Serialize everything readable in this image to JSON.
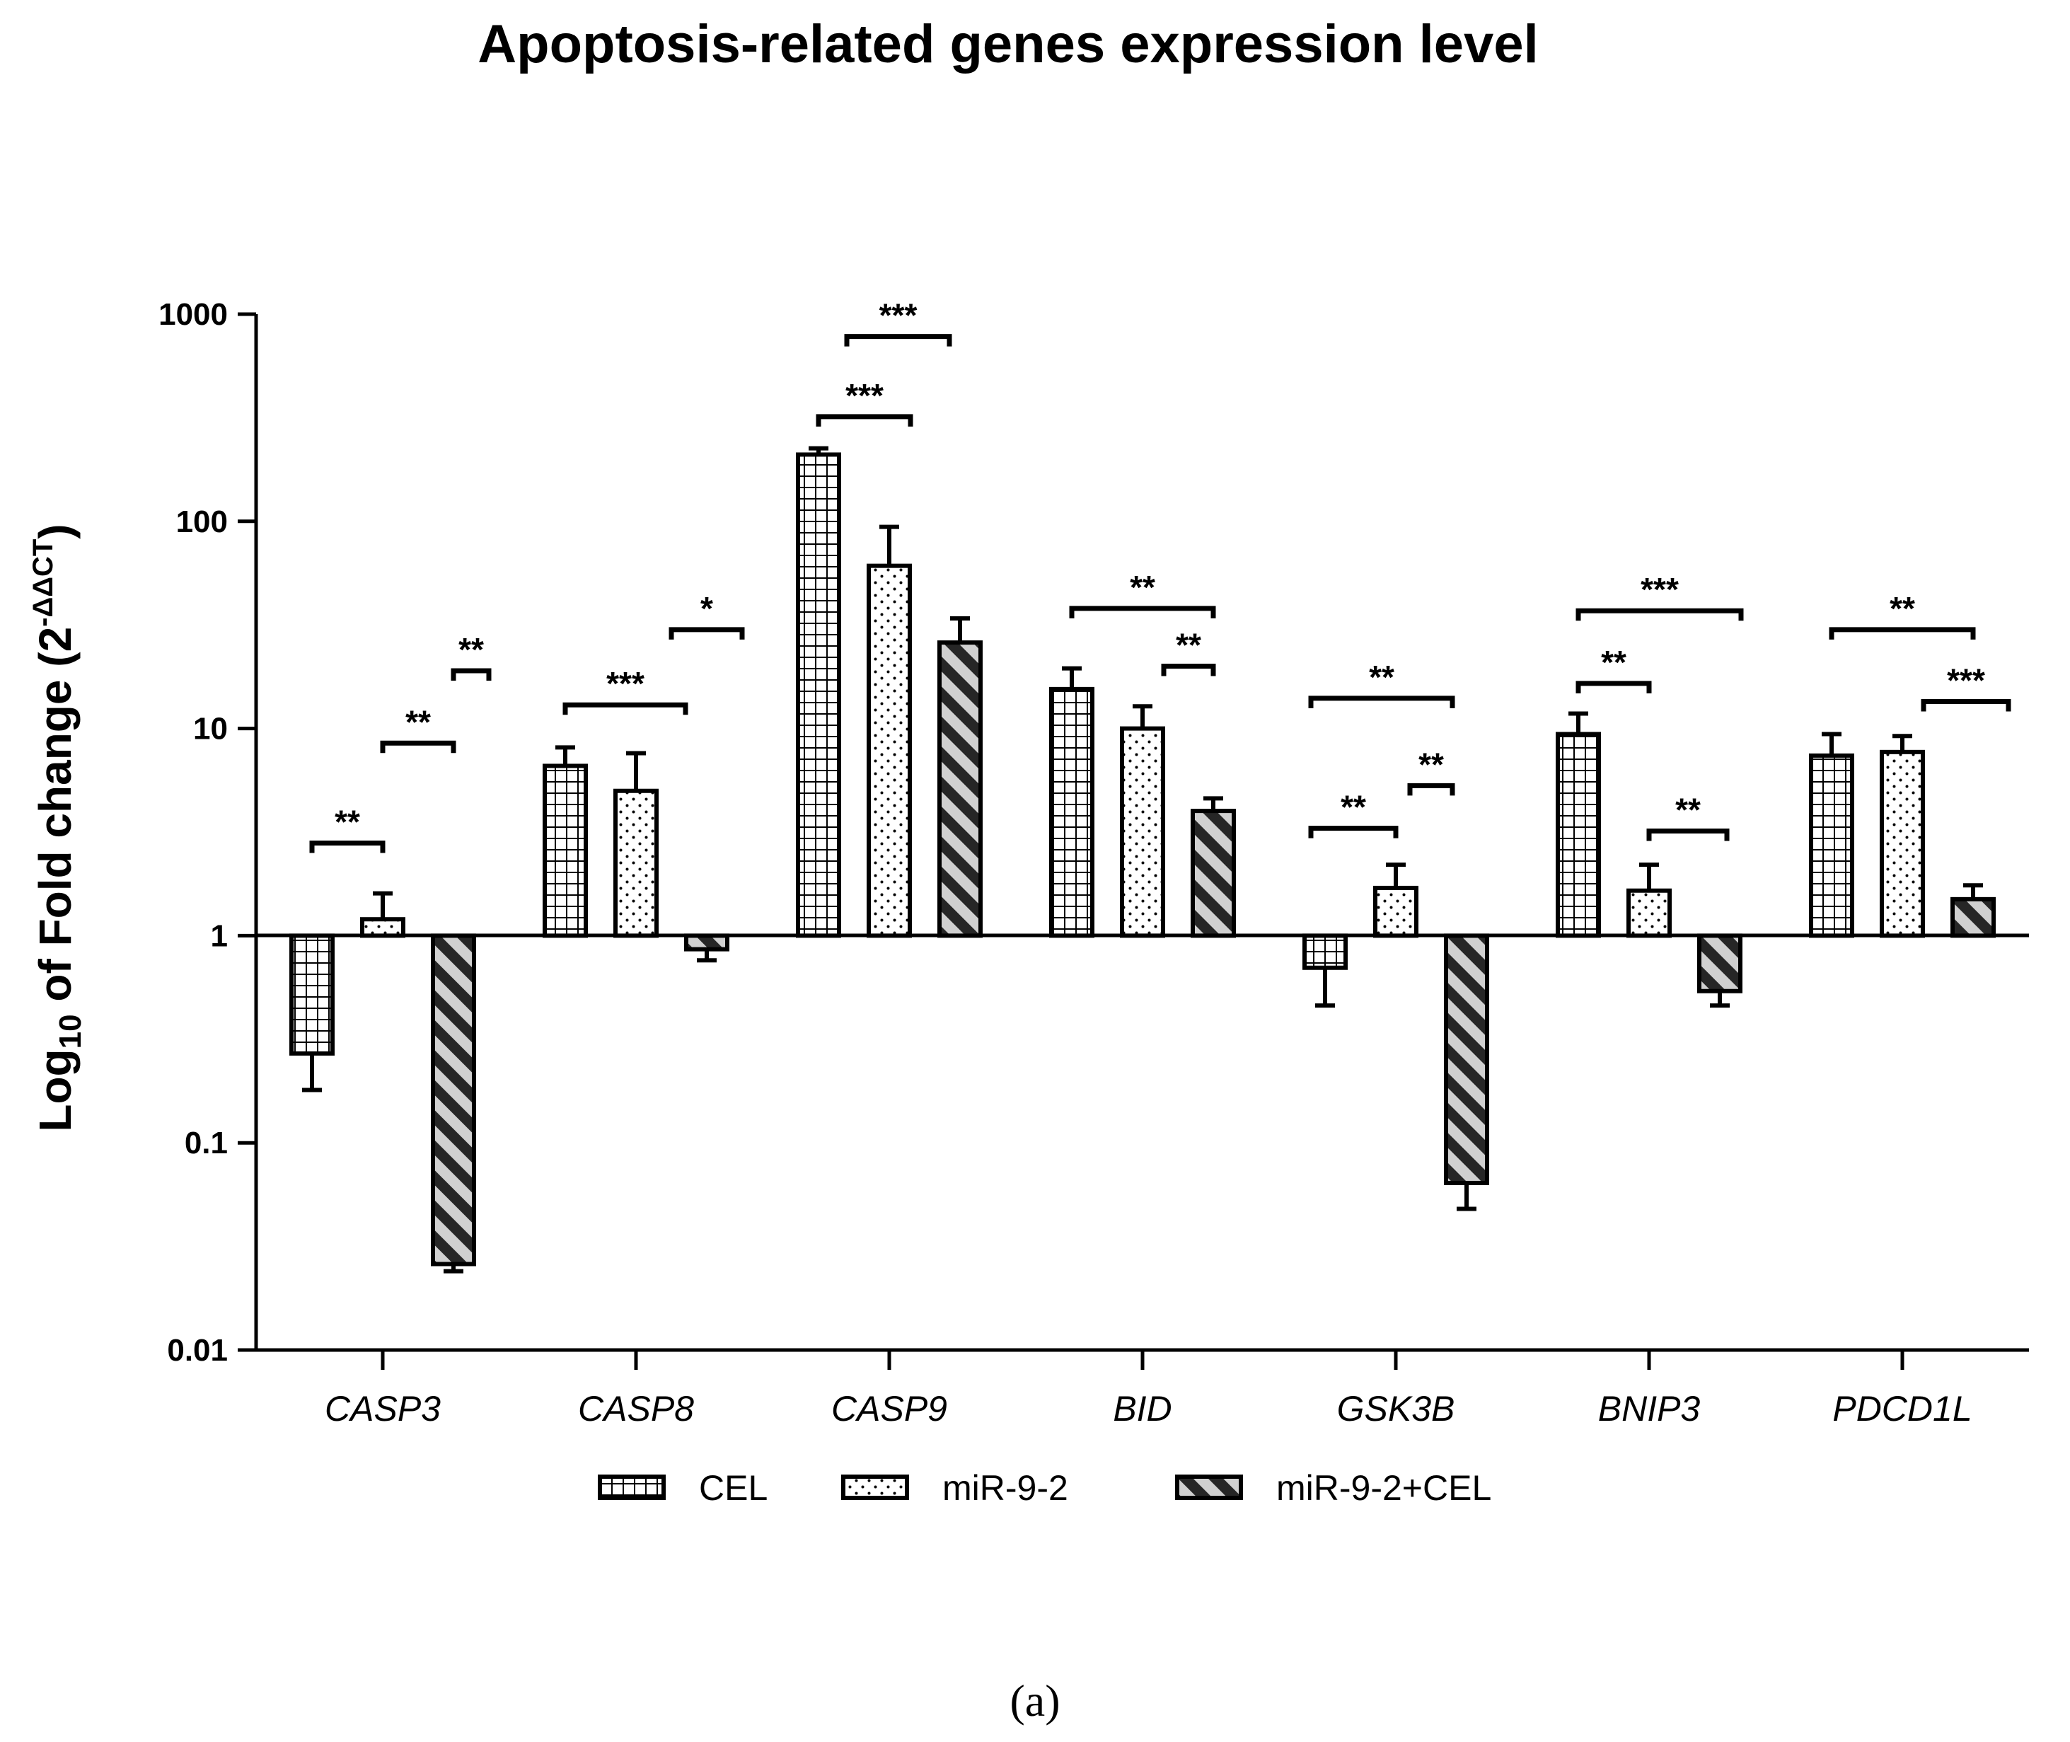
{
  "chart_data": {
    "type": "bar",
    "title": "Apoptosis-related genes expression level",
    "ylabel": "Log10 of Fold change (2^-ΔΔCT)",
    "ylabel_parts": {
      "main": "Log",
      "sub": "10",
      "mid": " of Fold change (2",
      "sup": "-ΔΔCT",
      "end": ")"
    },
    "xlabel": "",
    "yscale": "log",
    "ylim": [
      0.01,
      1000
    ],
    "baseline": 1,
    "yticks": [
      {
        "value": 1000,
        "label": "1000"
      },
      {
        "value": 100,
        "label": "100"
      },
      {
        "value": 10,
        "label": "10"
      },
      {
        "value": 1,
        "label": "1"
      },
      {
        "value": 0.1,
        "label": "0.1"
      },
      {
        "value": 0.01,
        "label": "0.01"
      }
    ],
    "categories": [
      "CASP3",
      "CASP8",
      "CASP9",
      "BID",
      "GSK3B",
      "BNIP3",
      "PDCD1L"
    ],
    "series": [
      {
        "name": "CEL",
        "pattern": "grid",
        "values": [
          0.27,
          6.6,
          210,
          15.5,
          0.7,
          9.4,
          7.4
        ],
        "errors": [
          0.18,
          8.1,
          225,
          19.5,
          0.46,
          11.8,
          9.4
        ]
      },
      {
        "name": "miR-9-2",
        "pattern": "dots",
        "values": [
          1.2,
          5.0,
          61,
          10.0,
          1.7,
          1.65,
          7.7
        ],
        "errors": [
          1.6,
          7.6,
          94,
          12.8,
          2.2,
          2.2,
          9.2
        ]
      },
      {
        "name": "miR-9-2+CEL",
        "pattern": "stripes",
        "values": [
          0.026,
          0.86,
          26,
          4.0,
          0.064,
          0.54,
          1.5
        ],
        "errors": [
          0.024,
          0.76,
          34,
          4.6,
          0.048,
          0.46,
          1.75
        ]
      }
    ],
    "significance": [
      {
        "category": 0,
        "from": 0,
        "to": 1,
        "y": 2.8,
        "label": "**"
      },
      {
        "category": 0,
        "from": 1,
        "to": 2,
        "y": 8.5,
        "label": "**"
      },
      {
        "category": 0,
        "from": 2,
        "to": 2.5,
        "y": 19,
        "label": "**"
      },
      {
        "category": 1,
        "from": 0,
        "to": 1.7,
        "y": 13,
        "label": "***"
      },
      {
        "category": 1,
        "from": 1.5,
        "to": 2.5,
        "y": 30,
        "label": "*"
      },
      {
        "category": 2,
        "from": 0,
        "to": 1.3,
        "y": 320,
        "label": "***"
      },
      {
        "category": 2,
        "from": 0.4,
        "to": 1.85,
        "y": 780,
        "label": "***"
      },
      {
        "category": 3,
        "from": 0,
        "to": 2,
        "y": 38,
        "label": "**"
      },
      {
        "category": 3,
        "from": 1.3,
        "to": 2,
        "y": 20,
        "label": "**"
      },
      {
        "category": 4,
        "from": -0.2,
        "to": 1,
        "y": 3.3,
        "label": "**"
      },
      {
        "category": 4,
        "from": -0.2,
        "to": 1.8,
        "y": 14,
        "label": "**"
      },
      {
        "category": 4,
        "from": 1.2,
        "to": 1.8,
        "y": 5.3,
        "label": "**"
      },
      {
        "category": 5,
        "from": 0,
        "to": 1,
        "y": 16.5,
        "label": "**"
      },
      {
        "category": 5,
        "from": 0,
        "to": 2.3,
        "y": 37,
        "label": "***"
      },
      {
        "category": 5,
        "from": 1,
        "to": 2.1,
        "y": 3.2,
        "label": "**"
      },
      {
        "category": 6,
        "from": 0,
        "to": 2,
        "y": 30,
        "label": "**"
      },
      {
        "category": 6,
        "from": 1.3,
        "to": 2.5,
        "y": 13.5,
        "label": "***"
      }
    ],
    "legend": [
      {
        "label": "CEL",
        "pattern": "grid"
      },
      {
        "label": "miR-9-2",
        "pattern": "dots"
      },
      {
        "label": "miR-9-2+CEL",
        "pattern": "stripes"
      }
    ],
    "legend_position": "bottom-center",
    "grid": false
  },
  "caption": "(a)"
}
